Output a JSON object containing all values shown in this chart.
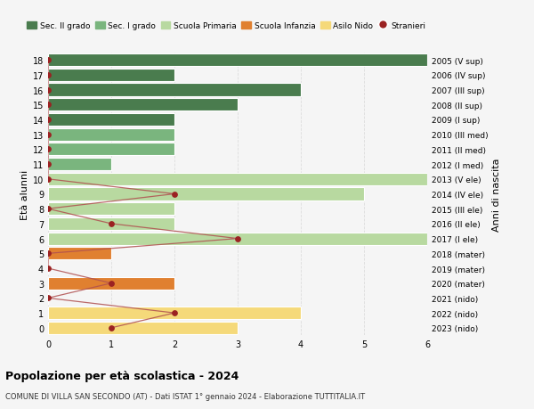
{
  "ages": [
    18,
    17,
    16,
    15,
    14,
    13,
    12,
    11,
    10,
    9,
    8,
    7,
    6,
    5,
    4,
    3,
    2,
    1,
    0
  ],
  "right_labels": [
    "2005 (V sup)",
    "2006 (IV sup)",
    "2007 (III sup)",
    "2008 (II sup)",
    "2009 (I sup)",
    "2010 (III med)",
    "2011 (II med)",
    "2012 (I med)",
    "2013 (V ele)",
    "2014 (IV ele)",
    "2015 (III ele)",
    "2016 (II ele)",
    "2017 (I ele)",
    "2018 (mater)",
    "2019 (mater)",
    "2020 (mater)",
    "2021 (nido)",
    "2022 (nido)",
    "2023 (nido)"
  ],
  "bar_values": [
    6,
    2,
    4,
    3,
    2,
    2,
    2,
    1,
    6,
    5,
    2,
    2,
    6,
    1,
    0,
    2,
    0,
    4,
    3
  ],
  "bar_colors": [
    "#4a7c4e",
    "#4a7c4e",
    "#4a7c4e",
    "#4a7c4e",
    "#4a7c4e",
    "#7ab57e",
    "#7ab57e",
    "#7ab57e",
    "#b8d9a0",
    "#b8d9a0",
    "#b8d9a0",
    "#b8d9a0",
    "#b8d9a0",
    "#e08030",
    "#e08030",
    "#e08030",
    "#f5d97a",
    "#f5d97a",
    "#f5d97a"
  ],
  "stranieri_ages": [
    18,
    17,
    16,
    15,
    14,
    13,
    12,
    11,
    10,
    9,
    8,
    7,
    6,
    5,
    4,
    3,
    2,
    1,
    0
  ],
  "stranieri_values": [
    0,
    0,
    0,
    0,
    0,
    0,
    0,
    0,
    0,
    2,
    0,
    1,
    3,
    0,
    0,
    1,
    0,
    2,
    1
  ],
  "stranieri_color": "#9b2222",
  "line_color": "#b05050",
  "title": "Popolazione per età scolastica - 2024",
  "subtitle": "COMUNE DI VILLA SAN SECONDO (AT) - Dati ISTAT 1° gennaio 2024 - Elaborazione TUTTITALIA.IT",
  "ylabel_left": "Età alunni",
  "ylabel_right": "Anni di nascita",
  "legend_items": [
    {
      "label": "Sec. II grado",
      "color": "#4a7c4e",
      "type": "patch"
    },
    {
      "label": "Sec. I grado",
      "color": "#7ab57e",
      "type": "patch"
    },
    {
      "label": "Scuola Primaria",
      "color": "#b8d9a0",
      "type": "patch"
    },
    {
      "label": "Scuola Infanzia",
      "color": "#e08030",
      "type": "patch"
    },
    {
      "label": "Asilo Nido",
      "color": "#f5d97a",
      "type": "patch"
    },
    {
      "label": "Stranieri",
      "color": "#9b2222",
      "type": "dot"
    }
  ],
  "xlim": [
    0,
    6
  ],
  "xticks": [
    0,
    1,
    2,
    3,
    4,
    5,
    6
  ],
  "bg_color": "#f5f5f5",
  "plot_bg_color": "#f5f5f5",
  "bar_height": 0.85,
  "grid_color": "#dddddd",
  "figsize": [
    6.0,
    4.6
  ],
  "dpi": 100
}
